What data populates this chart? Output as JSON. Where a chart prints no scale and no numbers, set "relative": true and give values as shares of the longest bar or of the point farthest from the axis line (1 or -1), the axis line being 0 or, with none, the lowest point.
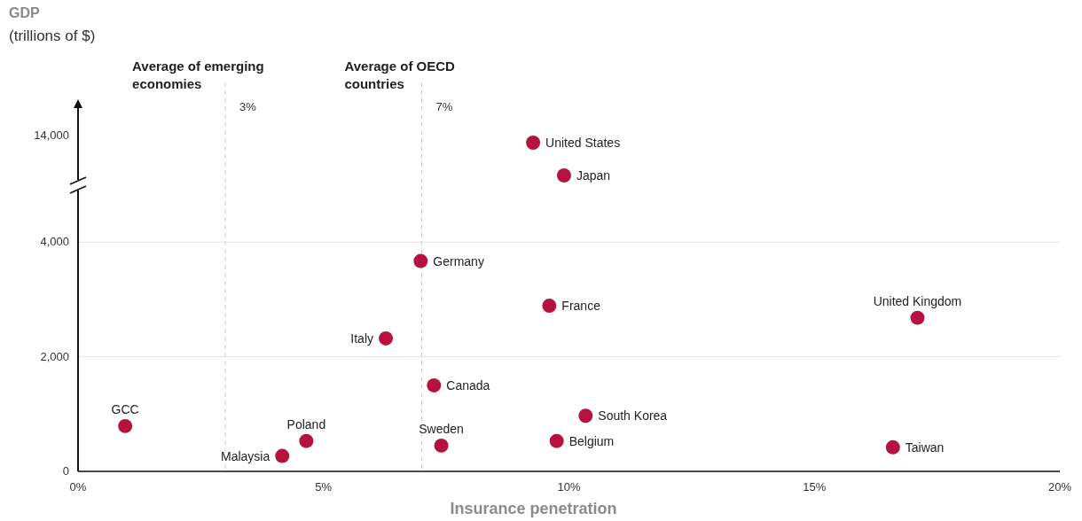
{
  "chart_data": [
    {
      "type": "scatter",
      "ylabel": "GDP\n(trillions of $)",
      "x": [
        9.27,
        9.9
      ],
      "values": [
        1,
        0
      ],
      "relative": true,
      "color": "#b5123e",
      "marker": "circle",
      "tick_labels": "y",
      "xlim": [
        0,
        20
      ],
      "ref_lines": [
        {
          "axis": "x",
          "value": 3,
          "label": "Average of emerging economies",
          "color": "#cccccc",
          "line_style": "dashed"
        },
        {
          "axis": "x",
          "value": 7,
          "label": "Average of OECD countries",
          "color": "#cccccc",
          "line_style": "dashed"
        }
      ],
      "annotations": [
        "United States",
        "Japan",
        "14,000",
        "3%",
        "7%"
      ]
    },
    {
      "type": "scatter",
      "xlabel": "Insurance penetration",
      "x": [
        0.96,
        4.65,
        4.16,
        7.4,
        7.25,
        6.27,
        6.98,
        9.6,
        9.75,
        10.34,
        17.1,
        16.6
      ],
      "values": [
        790,
        530,
        270,
        450,
        1500,
        2320,
        3670,
        2890,
        530,
        970,
        2680,
        420
      ],
      "color": "#b5123e",
      "marker": "circle",
      "grid": "y",
      "xlim": [
        0,
        20
      ],
      "xticks": [
        {
          "value": 0,
          "label": "0%"
        },
        {
          "value": 5,
          "label": "5%"
        },
        {
          "value": 10,
          "label": "10%"
        },
        {
          "value": 15,
          "label": "15%"
        },
        {
          "value": 20,
          "label": "20%"
        }
      ],
      "ylim": [
        0,
        4900
      ],
      "yticks": [
        {
          "value": 0,
          "label": "0"
        },
        {
          "value": 2000,
          "label": "2,000"
        },
        {
          "value": 4000,
          "label": "4,000"
        }
      ],
      "ref_lines": [
        {
          "axis": "x",
          "value": 3,
          "color": "#cccccc",
          "line_style": "dashed"
        },
        {
          "axis": "x",
          "value": 7,
          "color": "#cccccc",
          "line_style": "dashed"
        }
      ],
      "annotations": [
        "GCC",
        "Poland",
        "Malaysia",
        "Sweden",
        "Canada",
        "Italy",
        "Germany",
        "France",
        "Belgium",
        "South Korea",
        "United Kingdom",
        "Taiwan"
      ]
    }
  ]
}
